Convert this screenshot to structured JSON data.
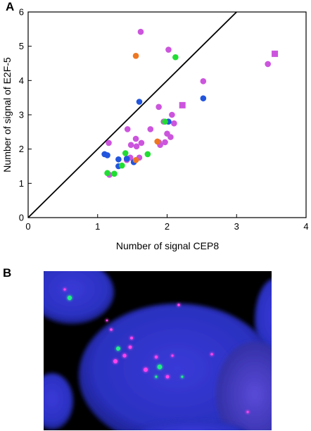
{
  "panels": {
    "a_label": "A",
    "b_label": "B"
  },
  "chart_data": {
    "type": "scatter",
    "xlabel": "Number of signal CEP8",
    "ylabel": "Number of signal of E2F-5",
    "xlim": [
      0,
      4
    ],
    "ylim": [
      0,
      6
    ],
    "x_ticks": [
      "0",
      "1",
      "2",
      "3",
      "4"
    ],
    "y_ticks": [
      "0",
      "1",
      "2",
      "3",
      "4",
      "5",
      "6"
    ],
    "diagonal_line": [
      [
        0,
        0
      ],
      [
        3,
        6
      ]
    ],
    "series": [
      {
        "color": "#cc55dd",
        "marker": "circle",
        "points": [
          [
            1.62,
            5.42
          ],
          [
            2.02,
            4.9
          ],
          [
            2.52,
            3.98
          ],
          [
            3.45,
            4.48
          ],
          [
            1.88,
            3.23
          ],
          [
            2.07,
            3.0
          ],
          [
            1.95,
            2.8
          ],
          [
            2.1,
            2.75
          ],
          [
            1.76,
            2.58
          ],
          [
            1.43,
            2.58
          ],
          [
            2.0,
            2.45
          ],
          [
            2.05,
            2.35
          ],
          [
            1.97,
            2.2
          ],
          [
            1.55,
            2.3
          ],
          [
            1.88,
            2.2
          ],
          [
            1.63,
            2.18
          ],
          [
            1.48,
            2.12
          ],
          [
            1.56,
            2.08
          ],
          [
            1.16,
            2.18
          ],
          [
            1.9,
            2.12
          ],
          [
            1.47,
            1.75
          ],
          [
            1.6,
            1.75
          ],
          [
            1.42,
            1.68
          ],
          [
            1.17,
            1.25
          ]
        ]
      },
      {
        "color": "#cc55dd",
        "marker": "square",
        "points": [
          [
            2.22,
            3.28
          ],
          [
            3.55,
            4.78
          ]
        ]
      },
      {
        "color": "#2255dd",
        "marker": "circle",
        "points": [
          [
            1.6,
            3.38
          ],
          [
            2.52,
            3.48
          ],
          [
            2.02,
            2.8
          ],
          [
            1.1,
            1.85
          ],
          [
            1.14,
            1.82
          ],
          [
            1.3,
            1.7
          ],
          [
            1.3,
            1.5
          ],
          [
            1.42,
            1.72
          ],
          [
            1.52,
            1.62
          ]
        ]
      },
      {
        "color": "#22dd33",
        "marker": "circle",
        "points": [
          [
            2.12,
            4.68
          ],
          [
            1.97,
            2.8
          ],
          [
            1.72,
            1.85
          ],
          [
            1.4,
            1.88
          ],
          [
            1.35,
            1.52
          ],
          [
            1.14,
            1.3
          ],
          [
            1.24,
            1.28
          ]
        ]
      },
      {
        "color": "#ee7722",
        "marker": "circle",
        "points": [
          [
            1.55,
            4.72
          ],
          [
            1.86,
            2.22
          ],
          [
            1.55,
            1.68
          ]
        ]
      }
    ]
  },
  "micrograph": {
    "background": "#000000",
    "nucleus_color": "#2a35c8",
    "probe_colors": [
      "#ff44ee",
      "#22ee88"
    ]
  }
}
